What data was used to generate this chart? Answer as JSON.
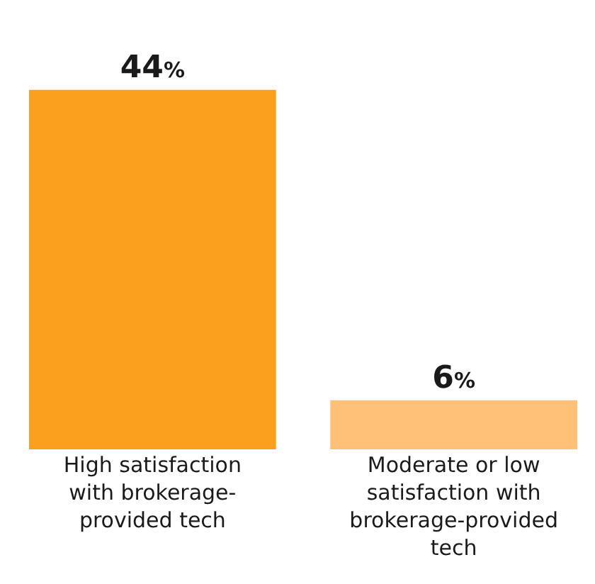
{
  "chart_data": {
    "type": "bar",
    "categories": [
      "High satisfaction with brokerage-provided tech",
      "Moderate or low satisfaction with brokerage-provided tech"
    ],
    "values": [
      44,
      6
    ],
    "colors": [
      "#fa9f1e",
      "#ffc077"
    ],
    "value_labels": [
      "44%",
      "6%"
    ]
  }
}
